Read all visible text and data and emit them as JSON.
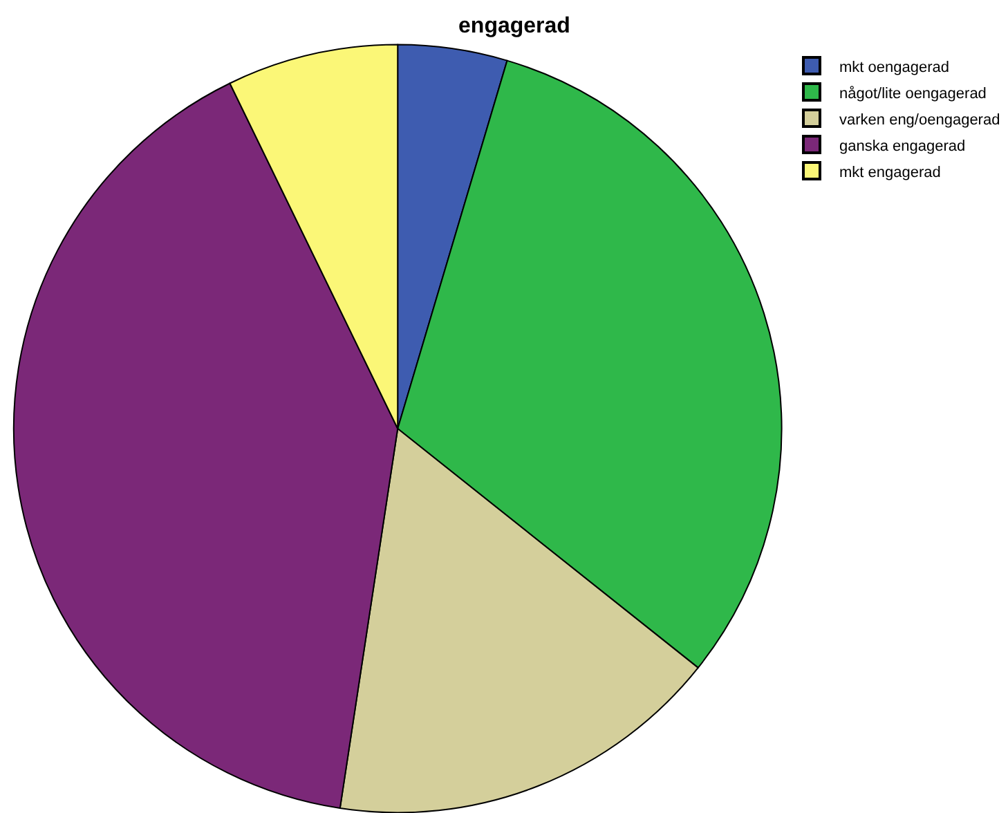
{
  "chart_data": {
    "type": "pie",
    "title": "engagerad",
    "categories": [
      "mkt oengagerad",
      "något/lite oengagerad",
      "varken eng/oengagerad",
      "ganska engagerad",
      "mkt engagerad"
    ],
    "values": [
      4.6,
      31.1,
      16.7,
      40.4,
      7.2
    ],
    "colors": [
      "#3e5cb0",
      "#2fb84a",
      "#d4cf9b",
      "#7b2878",
      "#fbf777"
    ],
    "legend": "top right"
  }
}
